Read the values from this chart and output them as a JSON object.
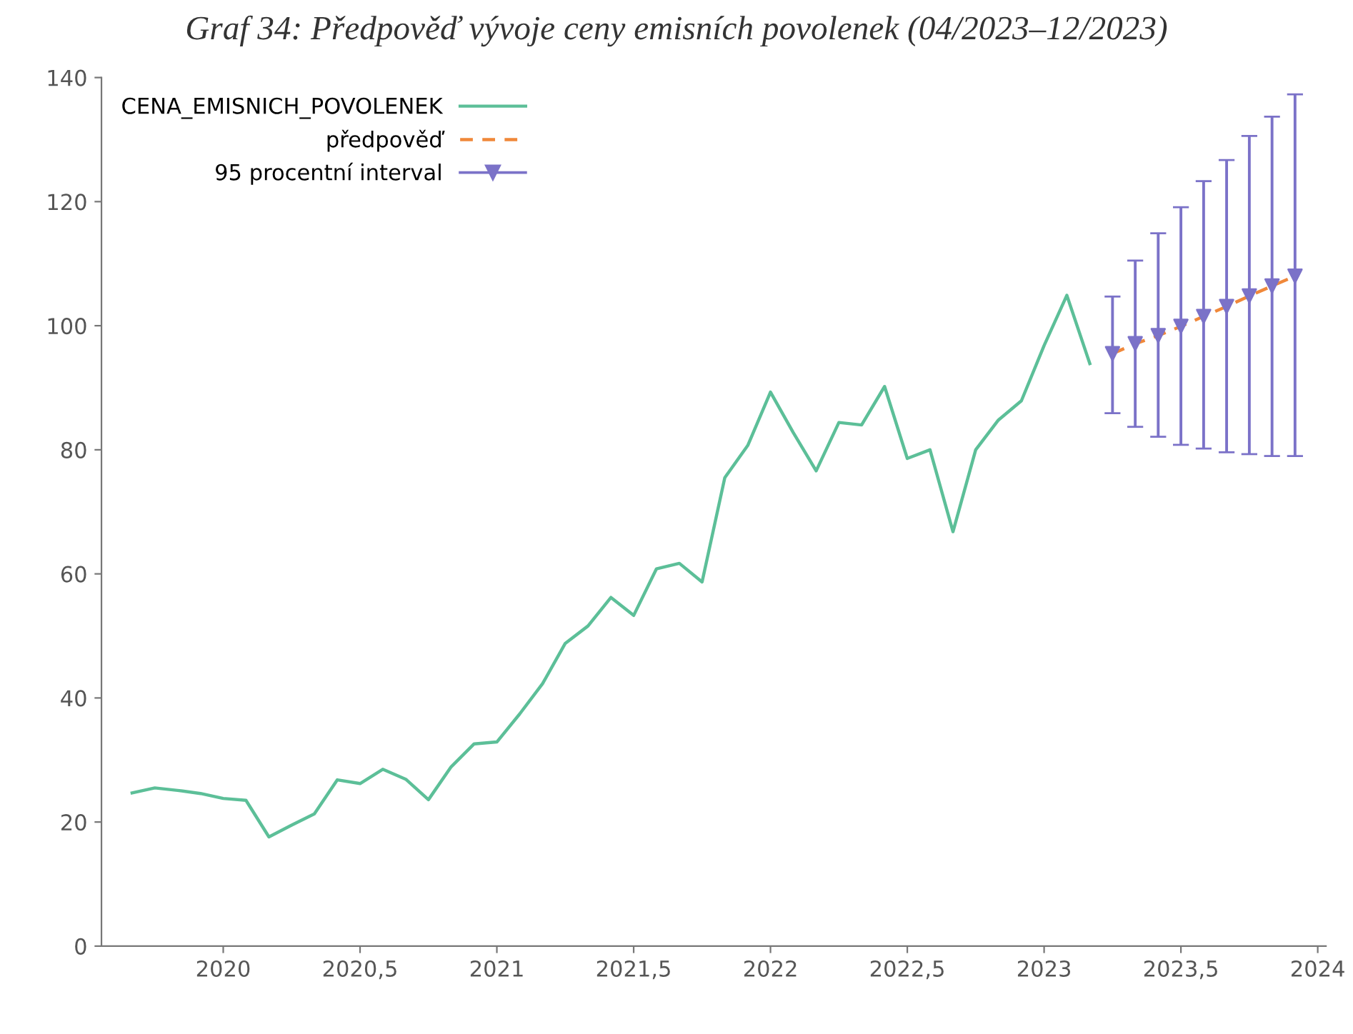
{
  "chart_data": {
    "type": "line",
    "title": "Graf 34: Předpověď vývoje ceny emisních povolenek (04/2023–12/2023)",
    "xlim": [
      2019.555,
      2024.03
    ],
    "ylim": [
      0,
      140
    ],
    "xticks": [
      2020,
      {
        "value": 2020.5,
        "label": "2020,5"
      },
      2021,
      {
        "value": 2021.5,
        "label": "2021,5"
      },
      2022,
      {
        "value": 2022.5,
        "label": "2022,5"
      },
      2023,
      {
        "value": 2023.5,
        "label": "2023,5"
      },
      2024
    ],
    "yticks": [
      0,
      20,
      40,
      60,
      80,
      100,
      120,
      140
    ],
    "grid": false,
    "legend": "top left",
    "series": [
      {
        "name": "CENA_EMISNICH_POVOLENEK",
        "color": "#5cbf98",
        "line_style": "solid",
        "marker": "none",
        "x": [
          2019.667,
          2019.75,
          2019.833,
          2019.917,
          2020.0,
          2020.083,
          2020.167,
          2020.25,
          2020.333,
          2020.417,
          2020.5,
          2020.583,
          2020.667,
          2020.75,
          2020.833,
          2020.917,
          2021.0,
          2021.083,
          2021.167,
          2021.25,
          2021.333,
          2021.417,
          2021.5,
          2021.583,
          2021.667,
          2021.75,
          2021.833,
          2021.917,
          2022.0,
          2022.083,
          2022.167,
          2022.25,
          2022.333,
          2022.417,
          2022.5,
          2022.583,
          2022.667,
          2022.75,
          2022.833,
          2022.917,
          2023.0,
          2023.083,
          2023.167
        ],
        "values": [
          24.7,
          25.5,
          25.1,
          24.6,
          23.8,
          23.5,
          17.6,
          19.5,
          21.3,
          26.8,
          26.2,
          28.5,
          26.9,
          23.6,
          28.9,
          32.6,
          32.9,
          37.4,
          42.3,
          48.8,
          51.6,
          56.2,
          53.3,
          60.8,
          61.7,
          58.7,
          75.5,
          80.7,
          89.3,
          82.8,
          76.6,
          84.4,
          84.0,
          90.2,
          78.6,
          80.0,
          66.8,
          80.0,
          84.8,
          87.9,
          96.8,
          104.9,
          93.9
        ]
      },
      {
        "name": "předpověď",
        "color": "#f0883a",
        "line_style": "dashed",
        "marker": "none",
        "x": [
          2023.25,
          2023.333,
          2023.417,
          2023.5,
          2023.583,
          2023.667,
          2023.75,
          2023.833,
          2023.917
        ],
        "values": [
          95.5,
          97.1,
          98.4,
          99.9,
          101.5,
          103.1,
          104.8,
          106.4,
          108.0
        ]
      },
      {
        "name": "95 procentní interval",
        "type": "scatter",
        "color": "#7b72c8",
        "marker": "triangle",
        "x": [
          2023.25,
          2023.333,
          2023.417,
          2023.5,
          2023.583,
          2023.667,
          2023.75,
          2023.833,
          2023.917
        ],
        "values": [
          95.5,
          97.1,
          98.4,
          99.9,
          101.5,
          103.1,
          104.8,
          106.4,
          108.0
        ],
        "errors": [
          [
            85.9,
            104.7
          ],
          [
            83.7,
            110.5
          ],
          [
            82.1,
            114.9
          ],
          [
            80.8,
            119.1
          ],
          [
            80.2,
            123.3
          ],
          [
            79.6,
            126.7
          ],
          [
            79.3,
            130.6
          ],
          [
            79.0,
            133.7
          ],
          [
            79.0,
            137.3
          ]
        ]
      }
    ]
  }
}
